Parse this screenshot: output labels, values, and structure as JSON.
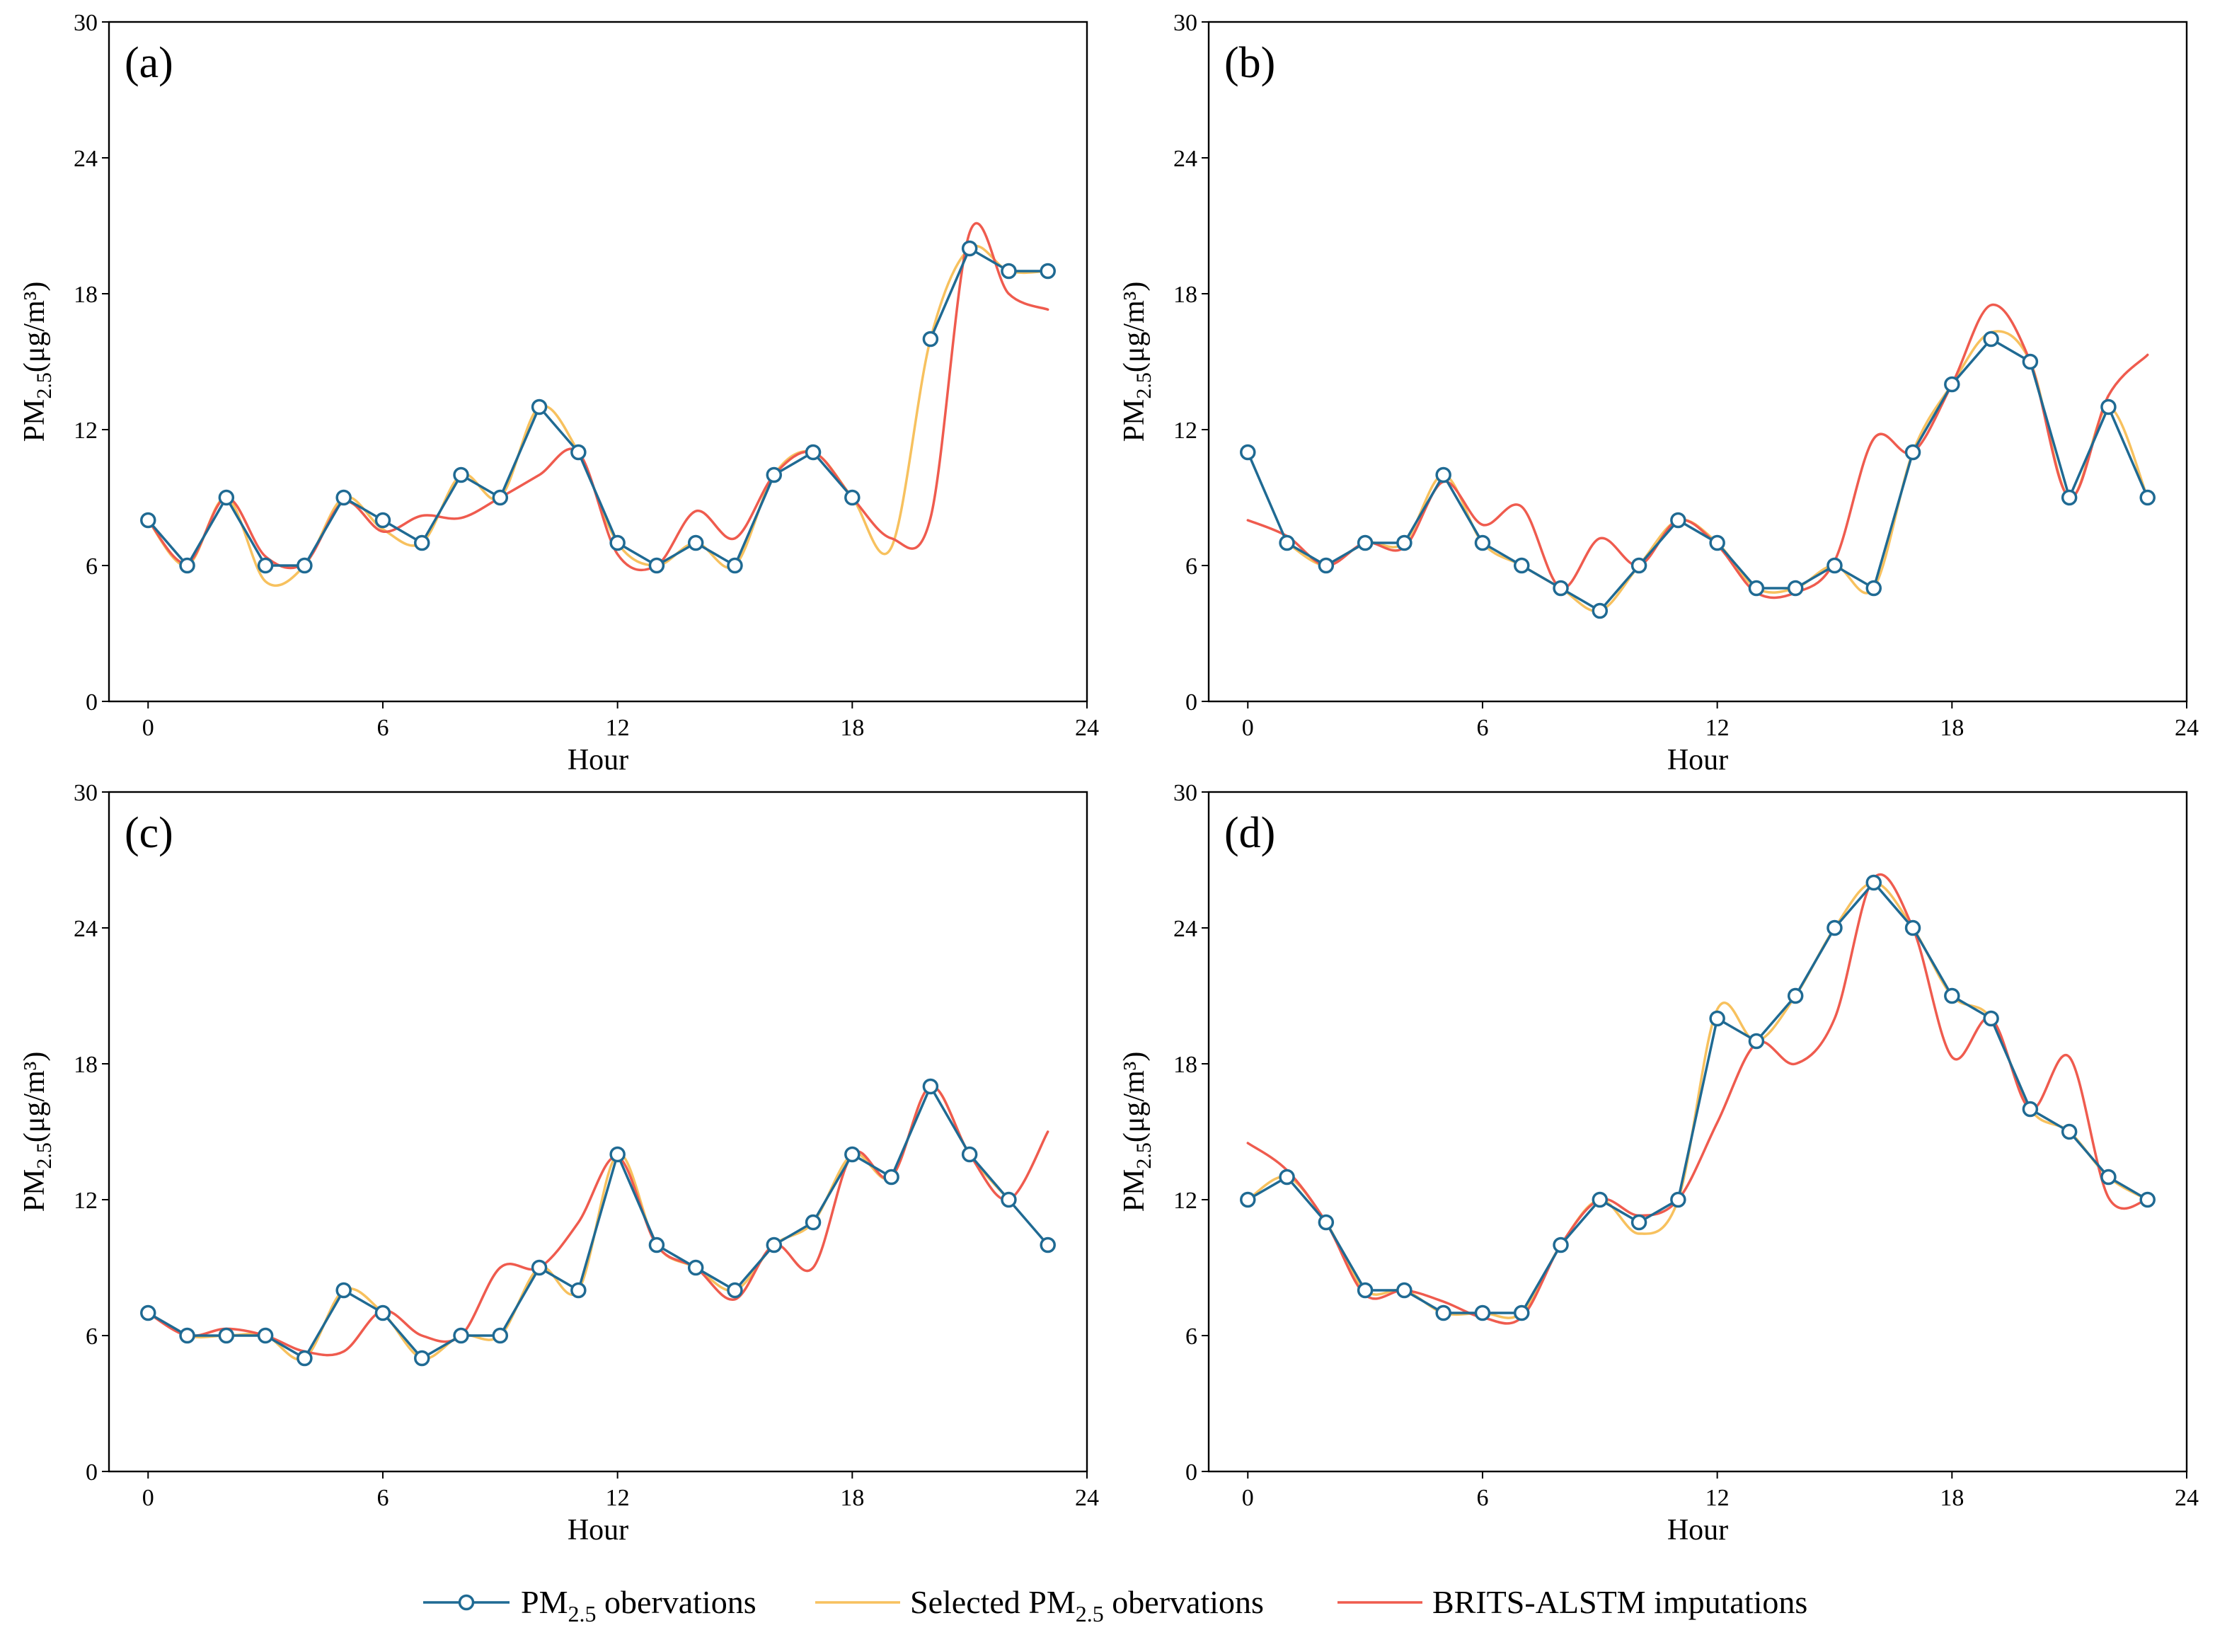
{
  "colors": {
    "observations": "#1f6a93",
    "selected": "#f7c15e",
    "imputations": "#ef5b4e",
    "marker_fill": "#ffffff"
  },
  "legend": {
    "observations_main": "PM",
    "observations_sub": "2.5",
    "observations_rest": " obervations",
    "selected_main": "Selected PM",
    "selected_sub": "2.5",
    "selected_rest": " obervations",
    "imputations": "BRITS-ALSTM imputations"
  },
  "chart_data": [
    {
      "type": "line",
      "panel_label": "(a)",
      "xlabel": "Hour",
      "ylabel_main": "PM",
      "ylabel_sub": "2.5",
      "ylabel_rest": "(μg/m³)",
      "xlim": [
        -1,
        24
      ],
      "ylim": [
        0,
        30
      ],
      "xticks": [
        0,
        6,
        12,
        18,
        24
      ],
      "yticks": [
        0,
        6,
        12,
        18,
        24,
        30
      ],
      "x": [
        0,
        1,
        2,
        3,
        4,
        5,
        6,
        7,
        8,
        9,
        10,
        11,
        12,
        13,
        14,
        15,
        16,
        17,
        18,
        19,
        20,
        21,
        22,
        23
      ],
      "series": [
        {
          "name": "PM2.5 obervations",
          "values": [
            8,
            6,
            9,
            6,
            6,
            9,
            8,
            7,
            10,
            9,
            13,
            11,
            7,
            6,
            7,
            6,
            10,
            11,
            9,
            null,
            16,
            20,
            19,
            19
          ]
        },
        {
          "name": "Selected PM2.5 obervations",
          "values": [
            8,
            6,
            9,
            5.3,
            6,
            9,
            7.6,
            7,
            10,
            9,
            13,
            11,
            7,
            6,
            7,
            6,
            10,
            11,
            9,
            6.8,
            16,
            20,
            19,
            19
          ]
        },
        {
          "name": "BRITS-ALSTM imputations",
          "values": [
            8,
            6.1,
            9,
            6.4,
            6.1,
            8.8,
            7.5,
            8.2,
            8.1,
            9,
            10,
            11,
            6.5,
            6,
            8.4,
            7.2,
            10,
            11,
            9,
            7.2,
            8.1,
            20.7,
            18,
            17.3
          ]
        }
      ]
    },
    {
      "type": "line",
      "panel_label": "(b)",
      "xlabel": "Hour",
      "ylabel_main": "PM",
      "ylabel_sub": "2.5",
      "ylabel_rest": "(μg/m³)",
      "xlim": [
        -1,
        24
      ],
      "ylim": [
        0,
        30
      ],
      "xticks": [
        0,
        6,
        12,
        18,
        24
      ],
      "yticks": [
        0,
        6,
        12,
        18,
        24,
        30
      ],
      "x": [
        0,
        1,
        2,
        3,
        4,
        5,
        6,
        7,
        8,
        9,
        10,
        11,
        12,
        13,
        14,
        15,
        16,
        17,
        18,
        19,
        20,
        21,
        22,
        23
      ],
      "series": [
        {
          "name": "PM2.5 obervations",
          "values": [
            11,
            7,
            6,
            7,
            7,
            10,
            7,
            6,
            5,
            4,
            6,
            8,
            7,
            5,
            5,
            6,
            5,
            11,
            14,
            16,
            15,
            9,
            13,
            9
          ]
        },
        {
          "name": "Selected PM2.5 obervations",
          "values": [
            null,
            7,
            6,
            7,
            7,
            10,
            7,
            6,
            5,
            4,
            6,
            8,
            7,
            5,
            5,
            6,
            5,
            11,
            14,
            16.3,
            15,
            9,
            13,
            9
          ]
        },
        {
          "name": "BRITS-ALSTM imputations",
          "values": [
            8,
            7.3,
            6,
            7,
            6.8,
            9.7,
            7.8,
            8.6,
            5,
            7.2,
            6,
            8,
            6.9,
            4.8,
            4.8,
            6.2,
            11.6,
            11,
            14,
            17.5,
            15,
            9,
            13.5,
            15.3
          ]
        }
      ]
    },
    {
      "type": "line",
      "panel_label": "(c)",
      "xlabel": "Hour",
      "ylabel_main": "PM",
      "ylabel_sub": "2.5",
      "ylabel_rest": "(μg/m³)",
      "xlim": [
        -1,
        24
      ],
      "ylim": [
        0,
        30
      ],
      "xticks": [
        0,
        6,
        12,
        18,
        24
      ],
      "yticks": [
        0,
        6,
        12,
        18,
        24,
        30
      ],
      "x": [
        0,
        1,
        2,
        3,
        4,
        5,
        6,
        7,
        8,
        9,
        10,
        11,
        12,
        13,
        14,
        15,
        16,
        17,
        18,
        19,
        20,
        21,
        22,
        23
      ],
      "series": [
        {
          "name": "PM2.5 obervations",
          "values": [
            7,
            6,
            6,
            6,
            5,
            8,
            7,
            5,
            6,
            6,
            9,
            8,
            14,
            10,
            9,
            8,
            10,
            11,
            14,
            13,
            17,
            14,
            12,
            10
          ]
        },
        {
          "name": "Selected PM2.5 obervations",
          "values": [
            7,
            6,
            6,
            6,
            5,
            8,
            7,
            5,
            6,
            6,
            9,
            8,
            14,
            10,
            9,
            8,
            10,
            11,
            14,
            13,
            17,
            14,
            12,
            null
          ]
        },
        {
          "name": "BRITS-ALSTM imputations",
          "values": [
            7,
            6,
            6.3,
            6,
            5.3,
            5.3,
            7.1,
            6,
            6,
            9,
            9,
            11,
            13.9,
            10,
            9,
            7.6,
            10,
            9,
            14,
            13,
            17,
            14,
            12,
            15
          ]
        }
      ]
    },
    {
      "type": "line",
      "panel_label": "(d)",
      "xlabel": "Hour",
      "ylabel_main": "PM",
      "ylabel_sub": "2.5",
      "ylabel_rest": "(μg/m³)",
      "xlim": [
        -1,
        24
      ],
      "ylim": [
        0,
        30
      ],
      "xticks": [
        0,
        6,
        12,
        18,
        24
      ],
      "yticks": [
        0,
        6,
        12,
        18,
        24,
        30
      ],
      "x": [
        0,
        1,
        2,
        3,
        4,
        5,
        6,
        7,
        8,
        9,
        10,
        11,
        12,
        13,
        14,
        15,
        16,
        17,
        18,
        19,
        20,
        21,
        22,
        23
      ],
      "series": [
        {
          "name": "PM2.5 obervations",
          "values": [
            12,
            13,
            11,
            8,
            8,
            7,
            7,
            7,
            10,
            12,
            11,
            12,
            20,
            19,
            21,
            24,
            26,
            24,
            21,
            20,
            16,
            15,
            13,
            12
          ]
        },
        {
          "name": "Selected PM2.5 obervations",
          "values": [
            12,
            13,
            11,
            8,
            8,
            7,
            7,
            7,
            10,
            12,
            10.5,
            12,
            20.4,
            19,
            21,
            24,
            26,
            24,
            21,
            20,
            16,
            15,
            13,
            12
          ]
        },
        {
          "name": "BRITS-ALSTM imputations",
          "values": [
            14.5,
            13.3,
            11,
            7.8,
            8,
            7.5,
            6.8,
            6.8,
            10,
            12,
            11.3,
            12,
            15.4,
            18.9,
            18,
            20,
            26.2,
            24,
            18.3,
            20,
            16,
            18.3,
            12.1,
            12
          ]
        }
      ]
    }
  ]
}
